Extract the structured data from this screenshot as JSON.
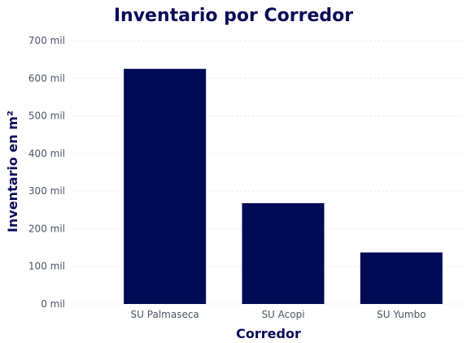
{
  "chart_data": {
    "type": "bar",
    "title": "Inventario por Corredor",
    "xlabel": "Corredor",
    "ylabel": "Inventario en m²",
    "categories": [
      "SU Palmaseca",
      "SU Acopi",
      "SU Yumbo"
    ],
    "values": [
      625000,
      268000,
      137000
    ],
    "ylim": [
      0,
      700000
    ],
    "yticks": [
      0,
      100000,
      200000,
      300000,
      400000,
      500000,
      600000,
      700000
    ],
    "ytick_labels": [
      "0 mil",
      "100 mil",
      "200 mil",
      "300 mil",
      "400 mil",
      "500 mil",
      "600 mil",
      "700 mil"
    ],
    "grid": true,
    "legend": "none",
    "bar_color": "#000a55"
  }
}
